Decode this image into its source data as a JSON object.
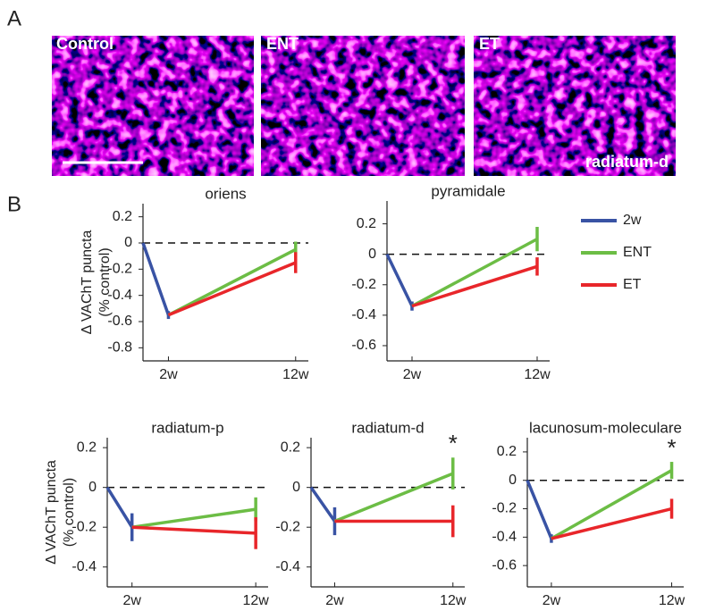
{
  "panel_labels": [
    "A",
    "B"
  ],
  "images": [
    {
      "label": "Control"
    },
    {
      "label": "ENT"
    },
    {
      "label": "ET",
      "region": "radiatum-d"
    }
  ],
  "chart_data": [
    {
      "type": "line",
      "title": "oriens",
      "ylabel": [
        "Δ VAChT puncta",
        "(% control)"
      ],
      "x": [
        0,
        2,
        12
      ],
      "xlim": [
        0,
        13
      ],
      "xticks": [
        {
          "value": 2,
          "label": "2w"
        },
        {
          "value": 12,
          "label": "12w"
        }
      ],
      "ylim": [
        -0.9,
        0.3
      ],
      "yticks": [
        0.2,
        0,
        -0.2,
        -0.4,
        -0.6,
        -0.8
      ],
      "reference_line": 0,
      "series": [
        {
          "name": "2w",
          "color": "#3953a4",
          "values": [
            0,
            -0.55,
            null
          ],
          "errors": [
            null,
            0.03,
            null
          ]
        },
        {
          "name": "ENT",
          "color": "#6cbd45",
          "values": [
            null,
            -0.55,
            -0.05
          ],
          "errors": [
            null,
            null,
            0.06
          ]
        },
        {
          "name": "ET",
          "color": "#e8262a",
          "values": [
            null,
            -0.55,
            -0.15
          ],
          "errors": [
            null,
            null,
            0.08
          ]
        }
      ]
    },
    {
      "type": "line",
      "title": "pyramidale",
      "legend": true,
      "x": [
        0,
        2,
        12
      ],
      "xlim": [
        0,
        13
      ],
      "xticks": [
        {
          "value": 2,
          "label": "2w"
        },
        {
          "value": 12,
          "label": "12w"
        }
      ],
      "ylim": [
        -0.7,
        0.35
      ],
      "yticks": [
        0.2,
        0,
        -0.2,
        -0.4,
        -0.6
      ],
      "reference_line": 0,
      "series": [
        {
          "name": "2w",
          "color": "#3953a4",
          "values": [
            0,
            -0.34,
            null
          ],
          "errors": [
            null,
            0.03,
            null
          ]
        },
        {
          "name": "ENT",
          "color": "#6cbd45",
          "values": [
            null,
            -0.34,
            0.1
          ],
          "errors": [
            null,
            null,
            0.08
          ]
        },
        {
          "name": "ET",
          "color": "#e8262a",
          "values": [
            null,
            -0.34,
            -0.08
          ],
          "errors": [
            null,
            null,
            0.06
          ]
        }
      ]
    },
    {
      "type": "line",
      "title": "radiatum-p",
      "ylabel": [
        "Δ VAChT puncta",
        "(% control)"
      ],
      "x": [
        0,
        2,
        12
      ],
      "xlim": [
        0,
        13
      ],
      "xticks": [
        {
          "value": 2,
          "label": "2w"
        },
        {
          "value": 12,
          "label": "12w"
        }
      ],
      "ylim": [
        -0.5,
        0.25
      ],
      "yticks": [
        0.2,
        0,
        -0.2,
        -0.4
      ],
      "reference_line": 0,
      "series": [
        {
          "name": "2w",
          "color": "#3953a4",
          "values": [
            0,
            -0.2,
            null
          ],
          "errors": [
            null,
            0.07,
            null
          ]
        },
        {
          "name": "ENT",
          "color": "#6cbd45",
          "values": [
            null,
            -0.2,
            -0.11
          ],
          "errors": [
            null,
            null,
            0.06
          ]
        },
        {
          "name": "ET",
          "color": "#e8262a",
          "values": [
            null,
            -0.2,
            -0.23
          ],
          "errors": [
            null,
            null,
            0.08
          ]
        }
      ]
    },
    {
      "type": "line",
      "title": "radiatum-d",
      "x": [
        0,
        2,
        12
      ],
      "xlim": [
        0,
        13
      ],
      "xticks": [
        {
          "value": 2,
          "label": "2w"
        },
        {
          "value": 12,
          "label": "12w"
        }
      ],
      "ylim": [
        -0.5,
        0.25
      ],
      "yticks": [
        0.2,
        0,
        -0.2,
        -0.4
      ],
      "reference_line": 0,
      "annotations": [
        {
          "text": "*",
          "x": 12,
          "series": 1
        }
      ],
      "series": [
        {
          "name": "2w",
          "color": "#3953a4",
          "values": [
            0,
            -0.17,
            null
          ],
          "errors": [
            null,
            0.07,
            null
          ]
        },
        {
          "name": "ENT",
          "color": "#6cbd45",
          "values": [
            null,
            -0.17,
            0.07
          ],
          "errors": [
            null,
            null,
            0.08
          ]
        },
        {
          "name": "ET",
          "color": "#e8262a",
          "values": [
            null,
            -0.17,
            -0.17
          ],
          "errors": [
            null,
            null,
            0.08
          ]
        }
      ]
    },
    {
      "type": "line",
      "title": "lacunosum-moleculare",
      "x": [
        0,
        2,
        12
      ],
      "xlim": [
        0,
        13
      ],
      "xticks": [
        {
          "value": 2,
          "label": "2w"
        },
        {
          "value": 12,
          "label": "12w"
        }
      ],
      "ylim": [
        -0.75,
        0.3
      ],
      "yticks": [
        0.2,
        0,
        -0.2,
        -0.4,
        -0.6
      ],
      "reference_line": 0,
      "annotations": [
        {
          "text": "*",
          "x": 12,
          "series": 1
        }
      ],
      "series": [
        {
          "name": "2w",
          "color": "#3953a4",
          "values": [
            0,
            -0.41,
            null
          ],
          "errors": [
            null,
            0.03,
            null
          ]
        },
        {
          "name": "ENT",
          "color": "#6cbd45",
          "values": [
            null,
            -0.41,
            0.07
          ],
          "errors": [
            null,
            null,
            0.06
          ]
        },
        {
          "name": "ET",
          "color": "#e8262a",
          "values": [
            null,
            -0.41,
            -0.2
          ],
          "errors": [
            null,
            null,
            0.07
          ]
        }
      ]
    }
  ]
}
